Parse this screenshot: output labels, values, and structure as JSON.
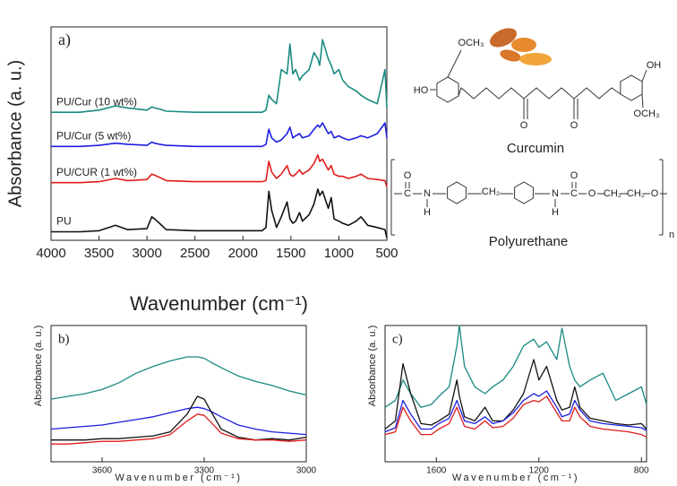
{
  "chart_data": [
    {
      "type": "line",
      "annotation": "a)",
      "x_label": "Wavenumber (cm⁻¹)",
      "y_label": "Absorbance (a. u.)",
      "xlim": [
        4000,
        500
      ],
      "ylim": [
        0,
        100
      ],
      "xticks": [
        4000,
        3500,
        3000,
        2500,
        2000,
        1500,
        1000,
        500
      ],
      "x": [
        4000,
        3700,
        3500,
        3330,
        3200,
        3000,
        2950,
        2920,
        2870,
        2800,
        2500,
        2000,
        1800,
        1760,
        1730,
        1700,
        1650,
        1600,
        1540,
        1510,
        1480,
        1450,
        1410,
        1380,
        1310,
        1260,
        1220,
        1200,
        1170,
        1110,
        1080,
        1050,
        1000,
        960,
        900,
        820,
        770,
        700,
        600,
        520,
        500
      ],
      "series": [
        {
          "name": "PU/Cur (10 wt%)",
          "color": "#1a8a82",
          "values": [
            60,
            60,
            61,
            63,
            62,
            61,
            62.5,
            62,
            61.5,
            60.5,
            60,
            60,
            60,
            61,
            68,
            66,
            64,
            80,
            78,
            92,
            78,
            80,
            75,
            77,
            80,
            88,
            85,
            82,
            94,
            85,
            82,
            78,
            80,
            75,
            72,
            70,
            68,
            66,
            64,
            80,
            62
          ]
        },
        {
          "name": "PU/Cur (5 wt%)",
          "color": "#1d1de0",
          "values": [
            44,
            44,
            44.5,
            45.5,
            45,
            44.5,
            46,
            45.5,
            45,
            44.5,
            44,
            44,
            44,
            45,
            52,
            48,
            46,
            47,
            50,
            53,
            48,
            49,
            50,
            48,
            49,
            52,
            54,
            53,
            55,
            50,
            51,
            48,
            49,
            48,
            47,
            48,
            49,
            48,
            50,
            55,
            48
          ]
        },
        {
          "name": "PU/CUR (1 wt%)",
          "color": "#e01c1c",
          "values": [
            27,
            27,
            27.5,
            29,
            28,
            28.5,
            31,
            30.5,
            29.5,
            28,
            27.5,
            27.5,
            27.5,
            28,
            37,
            32,
            29,
            31,
            35,
            31,
            30,
            31,
            33,
            31,
            33,
            36,
            40,
            37,
            38,
            33,
            35,
            31,
            30,
            30,
            29,
            30,
            31,
            29,
            28.5,
            28,
            25
          ]
        },
        {
          "name": "PU",
          "color": "#111111",
          "values": [
            4,
            4,
            4.5,
            7,
            5,
            5.5,
            11,
            10,
            8,
            5,
            4.5,
            4.5,
            4.5,
            6,
            23,
            14,
            6,
            11,
            18,
            10,
            8,
            9,
            13,
            9,
            12,
            17,
            24,
            21,
            23,
            15,
            20,
            10,
            9,
            8,
            7,
            9,
            11,
            7,
            6,
            5,
            1
          ]
        }
      ]
    },
    {
      "type": "line",
      "annotation": "b)",
      "x_label": "Wavenumber (cm⁻¹)",
      "y_label": "Absorbance (a. u.)",
      "xlim": [
        3750,
        3000
      ],
      "ylim": [
        0,
        100
      ],
      "xticks": [
        3600,
        3300,
        3000
      ],
      "x": [
        3750,
        3700,
        3650,
        3600,
        3550,
        3500,
        3450,
        3400,
        3350,
        3320,
        3300,
        3280,
        3250,
        3200,
        3150,
        3100,
        3050,
        3000
      ],
      "series": [
        {
          "color": "#1a8a82",
          "values": [
            46,
            48,
            50,
            53,
            58,
            65,
            70,
            74,
            77,
            77,
            76,
            73,
            69,
            63,
            59,
            56,
            52,
            49
          ]
        },
        {
          "color": "#1d1de0",
          "values": [
            24,
            25,
            26,
            27,
            29,
            31,
            33,
            36,
            39,
            40,
            39,
            37,
            33,
            27,
            24,
            22,
            21,
            20
          ]
        },
        {
          "color": "#111111",
          "values": [
            16,
            16,
            16,
            17,
            17,
            18,
            19,
            22,
            35,
            48,
            46,
            37,
            24,
            18,
            16,
            17,
            16,
            18
          ]
        },
        {
          "color": "#e01c1c",
          "values": [
            13,
            13,
            14,
            15,
            15,
            16,
            17,
            20,
            30,
            35,
            34,
            29,
            21,
            17,
            16,
            16,
            15,
            16
          ]
        }
      ]
    },
    {
      "type": "line",
      "annotation": "c)",
      "x_label": "Wavenumber (cm⁻¹)",
      "y_label": "Absorbance (a. u.)",
      "xlim": [
        1800,
        780
      ],
      "ylim": [
        0,
        100
      ],
      "xticks": [
        1600,
        1200,
        800
      ],
      "x": [
        1800,
        1760,
        1730,
        1700,
        1660,
        1620,
        1590,
        1550,
        1520,
        1510,
        1490,
        1450,
        1410,
        1380,
        1340,
        1300,
        1260,
        1220,
        1200,
        1170,
        1130,
        1110,
        1080,
        1060,
        1040,
        1000,
        950,
        900,
        850,
        800,
        780
      ],
      "series": [
        {
          "color": "#1a8a82",
          "values": [
            40,
            45,
            60,
            50,
            40,
            42,
            48,
            55,
            85,
            100,
            70,
            55,
            50,
            55,
            60,
            70,
            85,
            90,
            84,
            88,
            75,
            98,
            70,
            60,
            55,
            60,
            65,
            45,
            50,
            55,
            42
          ]
        },
        {
          "color": "#111111",
          "values": [
            24,
            30,
            72,
            50,
            28,
            27,
            30,
            35,
            60,
            48,
            33,
            30,
            40,
            30,
            30,
            38,
            50,
            75,
            60,
            70,
            45,
            38,
            40,
            55,
            40,
            32,
            30,
            28,
            27,
            28,
            24
          ]
        },
        {
          "color": "#1d1de0",
          "values": [
            22,
            25,
            45,
            35,
            24,
            24,
            28,
            32,
            45,
            40,
            30,
            28,
            33,
            28,
            30,
            36,
            45,
            50,
            48,
            52,
            40,
            33,
            35,
            45,
            38,
            30,
            28,
            27,
            26,
            25,
            23
          ]
        },
        {
          "color": "#e01c1c",
          "values": [
            20,
            22,
            40,
            30,
            20,
            20,
            24,
            28,
            40,
            35,
            26,
            24,
            30,
            25,
            26,
            32,
            42,
            45,
            44,
            48,
            36,
            30,
            30,
            40,
            33,
            26,
            24,
            23,
            22,
            20,
            18
          ]
        }
      ]
    }
  ],
  "structures": {
    "curcumin": {
      "name": "Curcumin",
      "groups": [
        "OCH₃",
        "HO",
        "O",
        "O",
        "OH",
        "OCH₃"
      ]
    },
    "polyurethane": {
      "name": "Polyurethane",
      "groups": [
        "O",
        "C",
        "N",
        "H",
        "CH₂",
        "N",
        "H",
        "O",
        "C",
        "O",
        "CH₂",
        "CH₂",
        "O"
      ],
      "repeat": "n"
    }
  }
}
